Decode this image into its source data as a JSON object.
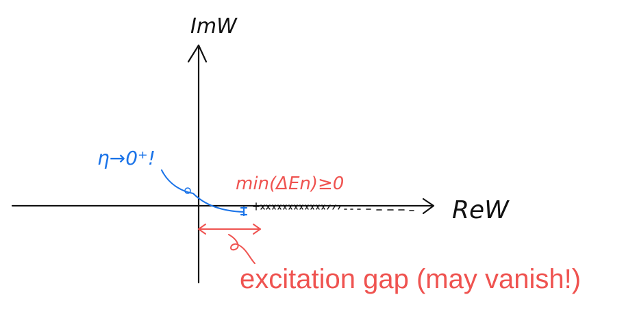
{
  "axes": {
    "imaginary_label": "ImW",
    "real_label": "ReW"
  },
  "annotations": {
    "eta_note": "η→0⁺!",
    "min_gap_note": "min(ΔEn)≥0",
    "gap_caption": "excitation gap (may vanish!)"
  },
  "colors": {
    "ink": "#111111",
    "blue": "#1a73e8",
    "red": "#ef5350"
  }
}
